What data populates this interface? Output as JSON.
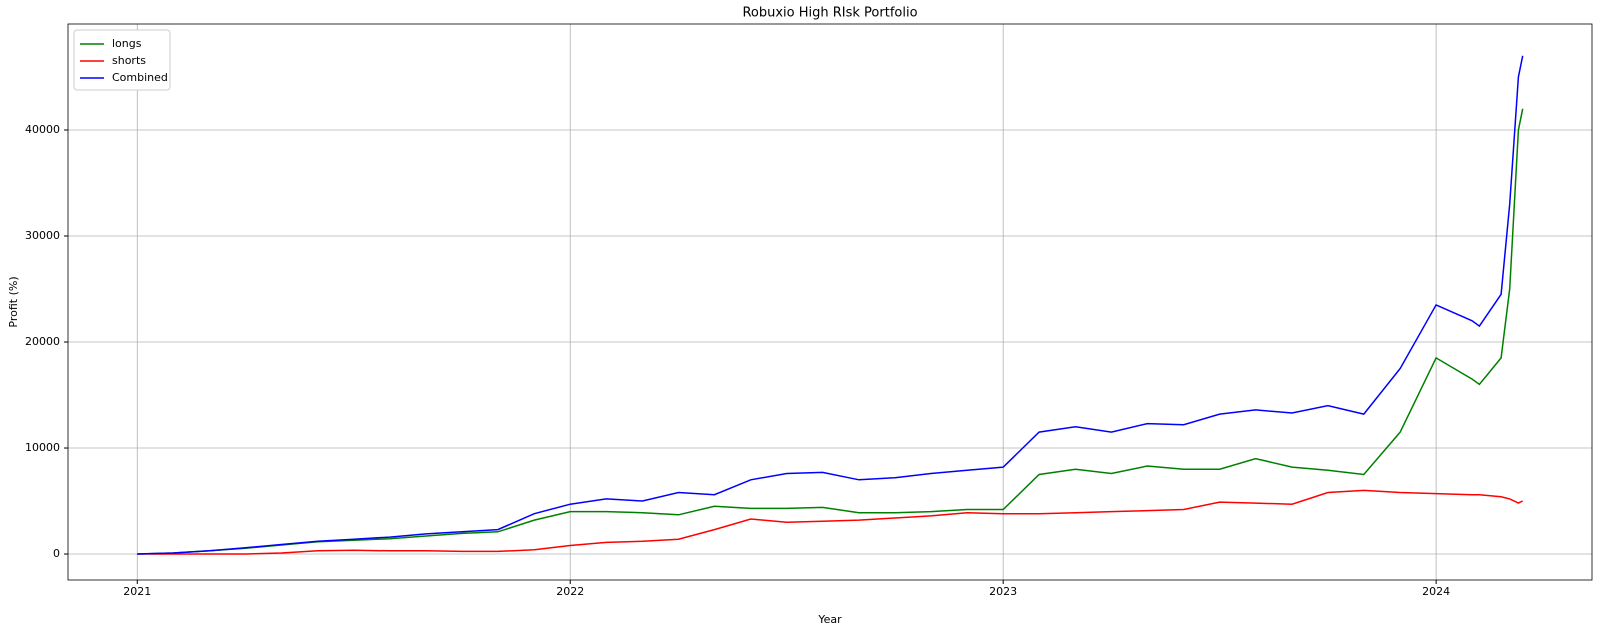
{
  "chart_data": {
    "type": "line",
    "title": "Robuxio High RIsk Portfolio",
    "x_label": "Year",
    "y_label": "Profit (%)",
    "x": [
      2021.0,
      2021.083,
      2021.167,
      2021.25,
      2021.333,
      2021.417,
      2021.5,
      2021.583,
      2021.667,
      2021.75,
      2021.833,
      2021.917,
      2022.0,
      2022.083,
      2022.167,
      2022.25,
      2022.333,
      2022.417,
      2022.5,
      2022.583,
      2022.667,
      2022.75,
      2022.833,
      2022.917,
      2023.0,
      2023.083,
      2023.167,
      2023.25,
      2023.333,
      2023.417,
      2023.5,
      2023.583,
      2023.667,
      2023.75,
      2023.833,
      2023.917,
      2024.0,
      2024.083,
      2024.1,
      2024.15,
      2024.17,
      2024.19,
      2024.2
    ],
    "series": [
      {
        "name": "longs",
        "color": "#008000",
        "values": [
          0,
          100,
          300,
          550,
          850,
          1150,
          1300,
          1450,
          1700,
          1950,
          2100,
          3200,
          4000,
          4000,
          3900,
          3700,
          4500,
          4300,
          4300,
          4400,
          3900,
          3900,
          4000,
          4200,
          4200,
          7500,
          8000,
          7600,
          8300,
          8000,
          8000,
          9000,
          8200,
          7900,
          7500,
          11500,
          18500,
          16500,
          16000,
          18500,
          25000,
          40000,
          42000
        ]
      },
      {
        "name": "shorts",
        "color": "#ff0000",
        "values": [
          0,
          0,
          0,
          0,
          100,
          300,
          350,
          300,
          300,
          250,
          250,
          400,
          800,
          1100,
          1200,
          1400,
          2300,
          3300,
          3000,
          3100,
          3200,
          3400,
          3600,
          3900,
          3800,
          3800,
          3900,
          4000,
          4100,
          4200,
          4900,
          4800,
          4700,
          5800,
          6000,
          5800,
          5700,
          5600,
          5600,
          5400,
          5200,
          4800,
          5000
        ]
      },
      {
        "name": "Combined",
        "color": "#0000ff",
        "values": [
          0,
          100,
          300,
          600,
          900,
          1200,
          1400,
          1600,
          1900,
          2100,
          2300,
          3800,
          4700,
          5200,
          5000,
          5800,
          5600,
          7000,
          7600,
          7700,
          7000,
          7200,
          7600,
          7900,
          8200,
          11500,
          12000,
          11500,
          12300,
          12200,
          13200,
          13600,
          13300,
          14000,
          13200,
          17500,
          23500,
          22000,
          21500,
          24500,
          33000,
          45000,
          47000
        ]
      }
    ],
    "xlim": [
      2020.84,
      2024.36
    ],
    "xticks": [
      2021,
      2022,
      2023,
      2024
    ],
    "ylim": [
      -2450,
      50000
    ],
    "yticks": [
      0,
      10000,
      20000,
      30000,
      40000
    ],
    "grid": true,
    "legend": "upper left"
  }
}
